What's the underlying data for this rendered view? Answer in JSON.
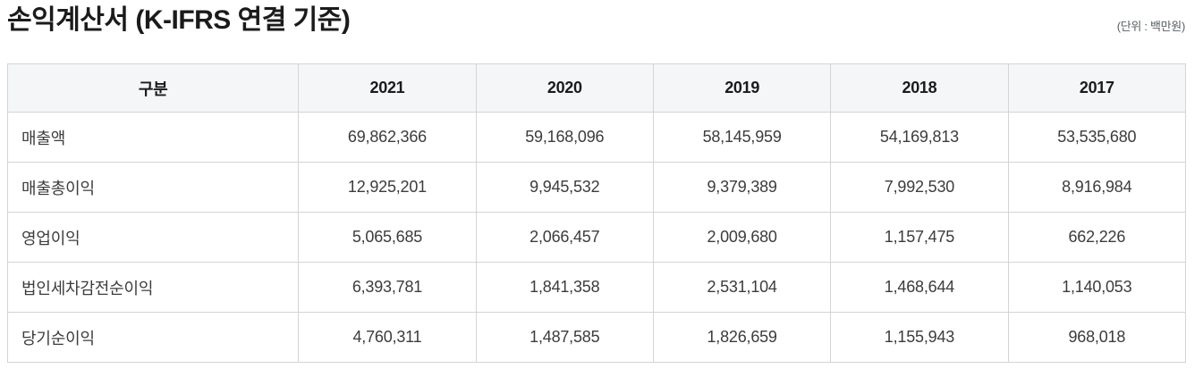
{
  "page": {
    "title": "손익계산서 (K-IFRS 연결 기준)",
    "unit_note": "(단위 : 백만원)"
  },
  "table": {
    "columns": [
      "구분",
      "2021",
      "2020",
      "2019",
      "2018",
      "2017"
    ],
    "rows": [
      {
        "label": "매출액",
        "values": [
          "69,862,366",
          "59,168,096",
          "58,145,959",
          "54,169,813",
          "53,535,680"
        ]
      },
      {
        "label": "매출총이익",
        "values": [
          "12,925,201",
          "9,945,532",
          "9,379,389",
          "7,992,530",
          "8,916,984"
        ]
      },
      {
        "label": "영업이익",
        "values": [
          "5,065,685",
          "2,066,457",
          "2,009,680",
          "1,157,475",
          "662,226"
        ]
      },
      {
        "label": "법인세차감전순이익",
        "values": [
          "6,393,781",
          "1,841,358",
          "2,531,104",
          "1,468,644",
          "1,140,053"
        ]
      },
      {
        "label": "당기순이익",
        "values": [
          "4,760,311",
          "1,487,585",
          "1,826,659",
          "1,155,943",
          "968,018"
        ]
      }
    ]
  },
  "chart_data": {
    "type": "table",
    "title": "손익계산서 (K-IFRS 연결 기준)",
    "unit": "백만원",
    "columns": [
      "구분",
      "2021",
      "2020",
      "2019",
      "2018",
      "2017"
    ],
    "rows": [
      {
        "label": "매출액",
        "values": [
          69862366,
          59168096,
          58145959,
          54169813,
          53535680
        ]
      },
      {
        "label": "매출총이익",
        "values": [
          12925201,
          9945532,
          9379389,
          7992530,
          8916984
        ]
      },
      {
        "label": "영업이익",
        "values": [
          5065685,
          2066457,
          2009680,
          1157475,
          662226
        ]
      },
      {
        "label": "법인세차감전순이익",
        "values": [
          6393781,
          1841358,
          2531104,
          1468644,
          1140053
        ]
      },
      {
        "label": "당기순이익",
        "values": [
          4760311,
          1487585,
          1826659,
          1155943,
          968018
        ]
      }
    ]
  },
  "colors": {
    "header_background": "#f5f6f7",
    "border": "#d2d4d6",
    "title_text": "#1b1b1b",
    "body_text": "#3c3c3c",
    "unit_text": "#576066",
    "page_background": "#ffffff"
  }
}
